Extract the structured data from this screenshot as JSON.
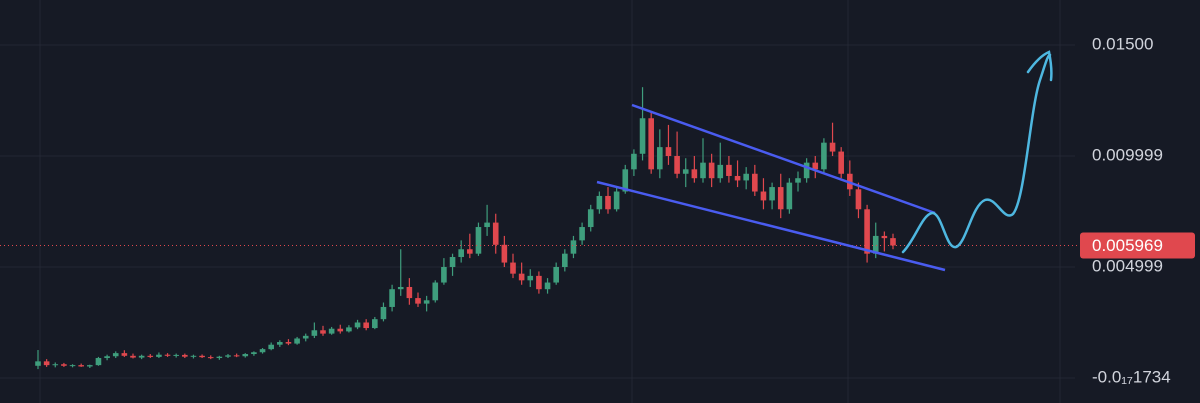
{
  "chart_data": {
    "type": "candlestick",
    "up_color": "#3f9e7d",
    "down_color": "#e0484e",
    "price_line_color": "#e0484e",
    "grid": true,
    "ylim": [
      -0.001126,
      0.017027
    ],
    "yticks": [
      {
        "value": 0.015,
        "label": "0.01500"
      },
      0.009999,
      0.004999,
      {
        "value": -1.734e-18,
        "label": "-0.0₁₇1734"
      }
    ],
    "last_price": 0.005969,
    "open": [
      0.00055,
      0.00075,
      0.00058,
      0.00062,
      0.00055,
      0.00058,
      0.00052,
      0.00058,
      0.0009,
      0.00098,
      0.00112,
      0.001,
      0.00092,
      0.001,
      0.00095,
      0.00105,
      0.001,
      0.00104,
      0.00096,
      0.001,
      0.00094,
      0.0009,
      0.00096,
      0.00102,
      0.00098,
      0.00108,
      0.00116,
      0.0013,
      0.0015,
      0.00162,
      0.00155,
      0.00178,
      0.0019,
      0.00215,
      0.002,
      0.00222,
      0.0021,
      0.00228,
      0.0025,
      0.00225,
      0.00265,
      0.0032,
      0.004,
      0.0041,
      0.0036,
      0.00335,
      0.0035,
      0.0043,
      0.005,
      0.00545,
      0.0058,
      0.0056,
      0.0068,
      0.007,
      0.006,
      0.0052,
      0.0047,
      0.0044,
      0.0046,
      0.004,
      0.0043,
      0.005,
      0.0056,
      0.0062,
      0.0068,
      0.0076,
      0.0082,
      0.0076,
      0.0084,
      0.0094,
      0.0101,
      0.0117,
      0.0094,
      0.0104,
      0.01,
      0.0092,
      0.0094,
      0.009,
      0.0097,
      0.009,
      0.0096,
      0.0091,
      0.0089,
      0.0092,
      0.0084,
      0.008,
      0.0086,
      0.0076,
      0.0088,
      0.009,
      0.0097,
      0.0094,
      0.0106,
      0.0102,
      0.0092,
      0.0085,
      0.0076,
      0.0056,
      0.0064,
      0.0063
    ],
    "high": [
      0.00126,
      0.00085,
      0.0007,
      0.00068,
      0.00062,
      0.00065,
      0.0006,
      0.00095,
      0.00105,
      0.0012,
      0.00125,
      0.0011,
      0.00105,
      0.00108,
      0.00115,
      0.00112,
      0.0011,
      0.0011,
      0.00105,
      0.00106,
      0.00102,
      0.001,
      0.00108,
      0.0011,
      0.00112,
      0.0012,
      0.00135,
      0.0016,
      0.0017,
      0.00175,
      0.00185,
      0.002,
      0.0025,
      0.00235,
      0.0023,
      0.0024,
      0.00238,
      0.00262,
      0.00265,
      0.00275,
      0.0034,
      0.0042,
      0.0058,
      0.0045,
      0.00385,
      0.0037,
      0.0044,
      0.0054,
      0.0056,
      0.0062,
      0.0065,
      0.007,
      0.0078,
      0.0074,
      0.0064,
      0.0056,
      0.0052,
      0.0049,
      0.0048,
      0.0045,
      0.0052,
      0.0058,
      0.0064,
      0.007,
      0.0078,
      0.0084,
      0.0086,
      0.0086,
      0.0096,
      0.0103,
      0.0131,
      0.012,
      0.0112,
      0.0114,
      0.0111,
      0.0099,
      0.01,
      0.0108,
      0.0101,
      0.0106,
      0.01,
      0.0098,
      0.0095,
      0.0096,
      0.009,
      0.0088,
      0.0092,
      0.009,
      0.0093,
      0.0099,
      0.01,
      0.0108,
      0.0115,
      0.0104,
      0.0098,
      0.0088,
      0.0078,
      0.007,
      0.0066,
      0.0065
    ],
    "low": [
      0.0004,
      0.0005,
      0.00048,
      0.0005,
      0.00048,
      0.0005,
      0.00045,
      0.00055,
      0.0008,
      0.0009,
      0.00095,
      0.00088,
      0.00085,
      0.0009,
      0.0009,
      0.00095,
      0.00092,
      0.0009,
      0.00088,
      0.0009,
      0.00085,
      0.00082,
      0.0009,
      0.00094,
      0.00092,
      0.001,
      0.0011,
      0.00125,
      0.0014,
      0.00148,
      0.0015,
      0.00165,
      0.0018,
      0.0019,
      0.00195,
      0.002,
      0.00205,
      0.0022,
      0.00215,
      0.0022,
      0.00255,
      0.003,
      0.0037,
      0.0033,
      0.0032,
      0.003,
      0.0034,
      0.0042,
      0.0046,
      0.0052,
      0.0054,
      0.0055,
      0.0064,
      0.0056,
      0.005,
      0.0045,
      0.0042,
      0.0041,
      0.0038,
      0.0038,
      0.0042,
      0.0048,
      0.0054,
      0.006,
      0.0066,
      0.0074,
      0.0074,
      0.0075,
      0.0083,
      0.0091,
      0.0098,
      0.0092,
      0.009,
      0.0096,
      0.009,
      0.0086,
      0.0088,
      0.0088,
      0.0086,
      0.0088,
      0.0088,
      0.0086,
      0.0085,
      0.0082,
      0.0076,
      0.0076,
      0.0072,
      0.0074,
      0.0084,
      0.0088,
      0.009,
      0.0092,
      0.01,
      0.009,
      0.0082,
      0.0072,
      0.0052,
      0.0054,
      0.0057,
      0.0058
    ],
    "close": [
      0.00075,
      0.00058,
      0.00062,
      0.00055,
      0.00058,
      0.00052,
      0.00058,
      0.0009,
      0.00098,
      0.00112,
      0.001,
      0.00092,
      0.001,
      0.00095,
      0.00105,
      0.001,
      0.00104,
      0.00096,
      0.001,
      0.00094,
      0.0009,
      0.00096,
      0.00102,
      0.00098,
      0.00108,
      0.00116,
      0.0013,
      0.0015,
      0.00162,
      0.00155,
      0.00178,
      0.0019,
      0.00215,
      0.002,
      0.00222,
      0.0021,
      0.00228,
      0.0025,
      0.00225,
      0.00265,
      0.0032,
      0.004,
      0.0041,
      0.0036,
      0.00335,
      0.0035,
      0.0043,
      0.005,
      0.00545,
      0.0058,
      0.0056,
      0.0068,
      0.007,
      0.006,
      0.0052,
      0.0047,
      0.0044,
      0.0046,
      0.004,
      0.0043,
      0.005,
      0.0056,
      0.0062,
      0.0068,
      0.0076,
      0.0082,
      0.0076,
      0.0084,
      0.0094,
      0.0101,
      0.0117,
      0.0094,
      0.0104,
      0.01,
      0.0092,
      0.0094,
      0.009,
      0.0097,
      0.009,
      0.0096,
      0.0091,
      0.0089,
      0.0092,
      0.0084,
      0.008,
      0.0086,
      0.0076,
      0.0088,
      0.009,
      0.0097,
      0.0094,
      0.0106,
      0.0102,
      0.0092,
      0.0085,
      0.0076,
      0.0056,
      0.0064,
      0.0063,
      0.005969
    ]
  }
}
